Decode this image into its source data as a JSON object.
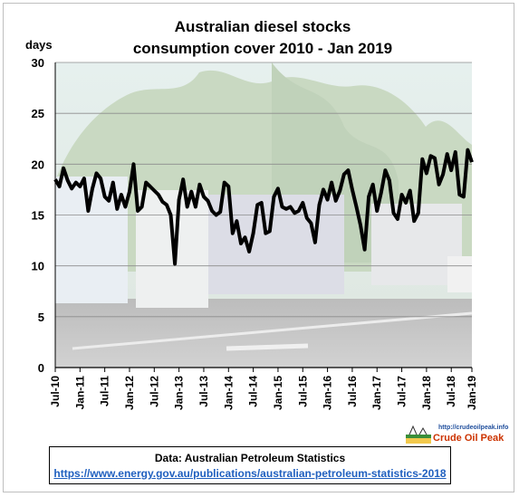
{
  "chart_data": {
    "type": "line",
    "title_line1": "Australian  diesel stocks",
    "title_line2": "consumption  cover 2010 - Jan 2019",
    "ylabel": "days",
    "ylim": [
      0,
      30
    ],
    "yticks": [
      "0",
      "5",
      "10",
      "15",
      "20",
      "25",
      "30"
    ],
    "xticks": [
      "Jul-10",
      "Jan-11",
      "Jul-11",
      "Jan-12",
      "Jul-12",
      "Jan-13",
      "Jul-13",
      "Jan-14",
      "Jul-14",
      "Jan-15",
      "Jul-15",
      "Jan-16",
      "Jul-16",
      "Jan-17",
      "Jul-17",
      "Jan-18",
      "Jul-18",
      "Jan-19"
    ],
    "grid": true,
    "series": [
      {
        "color": "#000000",
        "values": [
          18.5,
          17.8,
          19.6,
          18.4,
          17.6,
          18.2,
          17.8,
          18.6,
          15.4,
          17.6,
          19.1,
          18.6,
          16.8,
          16.4,
          18.2,
          15.6,
          17.0,
          15.8,
          17.3,
          20.0,
          15.4,
          15.8,
          18.2,
          17.8,
          17.4,
          17.0,
          16.3,
          16.0,
          15.0,
          10.2,
          16.5,
          18.5,
          15.8,
          17.3,
          15.8,
          18.0,
          16.8,
          16.4,
          15.4,
          15.0,
          15.3,
          18.2,
          17.8,
          13.2,
          14.4,
          12.2,
          12.8,
          11.4,
          13.2,
          16.0,
          16.2,
          13.2,
          13.4,
          16.8,
          17.6,
          15.8,
          15.6,
          15.8,
          15.2,
          15.4,
          16.2,
          14.7,
          14.2,
          12.3,
          16.0,
          17.5,
          16.5,
          18.2,
          16.4,
          17.4,
          19.0,
          19.4,
          17.5,
          15.8,
          14.0,
          11.6,
          16.8,
          18.0,
          15.4,
          17.2,
          19.4,
          18.4,
          15.2,
          14.6,
          17.0,
          16.2,
          17.4,
          14.4,
          15.2,
          20.5,
          19.1,
          20.8,
          20.6,
          18.0,
          19.0,
          21.0,
          19.4,
          21.2,
          17.0,
          16.8,
          21.4,
          20.2
        ]
      }
    ]
  },
  "watermark": {
    "url": "http://crudeoilpeak.info",
    "name": "Crude Oil Peak"
  },
  "source": {
    "label": "Data: Australian Petroleum Statistics",
    "link": "https://www.energy.gov.au/publications/australian-petroleum-statistics-2018"
  }
}
